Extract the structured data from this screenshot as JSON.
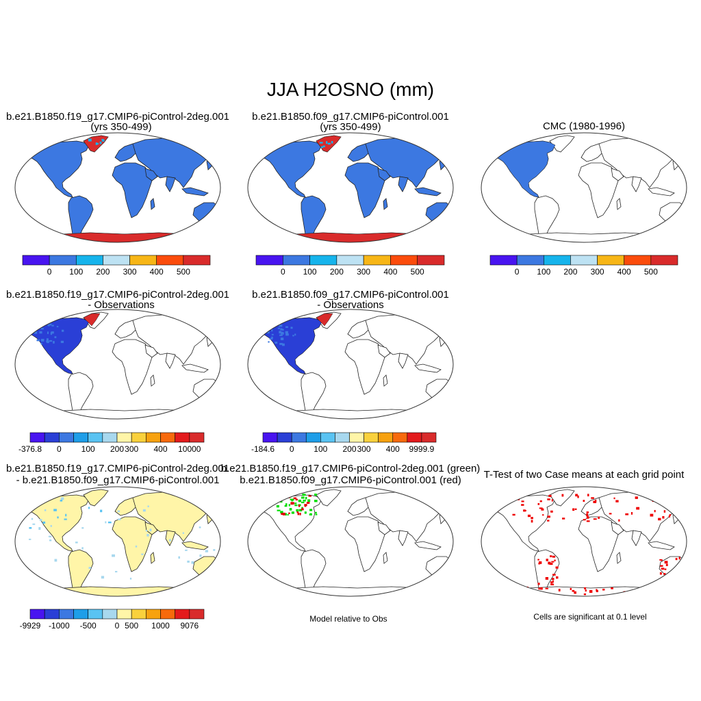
{
  "figure_title": "JJA H2OSNO (mm)",
  "chart_data": [
    {
      "type": "heatmap",
      "panel": "case1-climatology",
      "title_lines": [
        "b.e21.B1850.f19_g17.CMIP6-piControl-2deg.001",
        "(yrs 350-499)"
      ],
      "colorbar": {
        "colors": [
          "#4814f0",
          "#3c78e1",
          "#16b4ec",
          "#bde2f3",
          "#f7b617",
          "#fb4c0c",
          "#d92b2b"
        ],
        "tick_labels": [
          "0",
          "100",
          "200",
          "300",
          "400",
          "500"
        ]
      },
      "dominant_region_colors": {
        "land": "#3c78e1",
        "antarctica_greenland": "#d92b2b"
      }
    },
    {
      "type": "heatmap",
      "panel": "case2-climatology",
      "title_lines": [
        "b.e21.B1850.f09_g17.CMIP6-piControl.001",
        "(yrs 350-499)"
      ],
      "colorbar": {
        "colors": [
          "#4814f0",
          "#3c78e1",
          "#16b4ec",
          "#bde2f3",
          "#f7b617",
          "#fb4c0c",
          "#d92b2b"
        ],
        "tick_labels": [
          "0",
          "100",
          "200",
          "300",
          "400",
          "500"
        ]
      },
      "dominant_region_colors": {
        "land": "#3c78e1",
        "antarctica_greenland": "#d92b2b"
      }
    },
    {
      "type": "heatmap",
      "panel": "observations",
      "title_lines": [
        "CMC (1980-1996)"
      ],
      "colorbar": {
        "colors": [
          "#4814f0",
          "#3c78e1",
          "#16b4ec",
          "#bde2f3",
          "#f7b617",
          "#fb4c0c",
          "#d92b2b"
        ],
        "tick_labels": [
          "0",
          "100",
          "200",
          "300",
          "400",
          "500"
        ]
      },
      "dominant_region_colors": {
        "north_america": "#3c78e1"
      }
    },
    {
      "type": "heatmap",
      "panel": "case1-minus-obs",
      "title_lines": [
        "b.e21.B1850.f19_g17.CMIP6-piControl-2deg.001",
        "- Observations"
      ],
      "colorbar": {
        "colors": [
          "#4814f0",
          "#2a3fd6",
          "#3c78e1",
          "#1e9ee8",
          "#59c3f2",
          "#a8d8ee",
          "#fff5a8",
          "#f9d13c",
          "#f7a20f",
          "#f76a0c",
          "#e31a1c",
          "#d92b2b"
        ],
        "tick_labels": [
          "-376.8",
          "0",
          "100",
          "200",
          "300",
          "400",
          "10000"
        ]
      }
    },
    {
      "type": "heatmap",
      "panel": "case2-minus-obs",
      "title_lines": [
        "b.e21.B1850.f09_g17.CMIP6-piControl.001",
        "- Observations"
      ],
      "colorbar": {
        "colors": [
          "#4814f0",
          "#2a3fd6",
          "#3c78e1",
          "#1e9ee8",
          "#59c3f2",
          "#a8d8ee",
          "#fff5a8",
          "#f9d13c",
          "#f7a20f",
          "#f76a0c",
          "#e31a1c",
          "#d92b2b"
        ],
        "tick_labels": [
          "-184.6",
          "0",
          "100",
          "200",
          "300",
          "400",
          "9999.9"
        ]
      }
    },
    {
      "type": "heatmap",
      "panel": "case1-minus-case2",
      "title_lines": [
        "b.e21.B1850.f19_g17.CMIP6-piControl-2deg.001",
        "- b.e21.B1850.f09_g17.CMIP6-piControl.001"
      ],
      "colorbar": {
        "colors": [
          "#4814f0",
          "#2a3fd6",
          "#3c78e1",
          "#1e9ee8",
          "#59c3f2",
          "#a8d8ee",
          "#fff5a8",
          "#f9d13c",
          "#f7a20f",
          "#f76a0c",
          "#e31a1c",
          "#d92b2b"
        ],
        "tick_labels": [
          "-9929",
          "-1000",
          "-500",
          "0",
          "500",
          "1000",
          "9076"
        ]
      }
    },
    {
      "type": "heatmap",
      "panel": "model-relative-to-obs",
      "title_lines": [
        "b.e21.B1850.f19_g17.CMIP6-piControl-2deg.001 (green)",
        "b.e21.B1850.f09_g17.CMIP6-piControl.001 (red)"
      ],
      "caption": "Model relative to Obs",
      "series_colors": {
        "case1": "#00dd00",
        "case2": "#e00000"
      }
    },
    {
      "type": "heatmap",
      "panel": "t-test",
      "title_lines": [
        "T-Test of two Case means at each grid point"
      ],
      "caption": "Cells are significant at 0.1 level",
      "series_colors": {
        "significant": "#ee0000"
      }
    }
  ]
}
